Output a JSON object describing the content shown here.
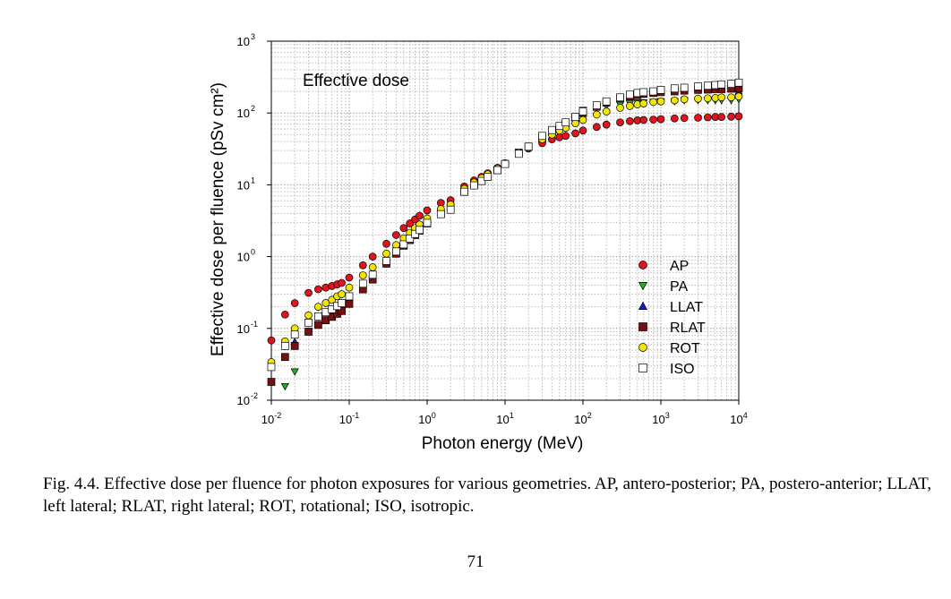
{
  "chart_data": {
    "type": "scatter",
    "title": "Effective dose",
    "xlabel": "Photon energy (MeV)",
    "ylabel": "Effective dose per fluence (pSv cm²)",
    "x_scale": "log",
    "y_scale": "log",
    "xlim": [
      0.01,
      10000
    ],
    "ylim": [
      0.01,
      1000
    ],
    "x_ticks": [
      {
        "base": "10",
        "exp": "-2"
      },
      {
        "base": "10",
        "exp": "-1"
      },
      {
        "base": "10",
        "exp": "0"
      },
      {
        "base": "10",
        "exp": "1"
      },
      {
        "base": "10",
        "exp": "2"
      },
      {
        "base": "10",
        "exp": "3"
      },
      {
        "base": "10",
        "exp": "4"
      }
    ],
    "y_ticks": [
      {
        "base": "10",
        "exp": "-2"
      },
      {
        "base": "10",
        "exp": "-1"
      },
      {
        "base": "10",
        "exp": "0"
      },
      {
        "base": "10",
        "exp": "1"
      },
      {
        "base": "10",
        "exp": "2"
      },
      {
        "base": "10",
        "exp": "3"
      }
    ],
    "grid": true,
    "legend_position": "bottom-right",
    "series": [
      {
        "name": "AP",
        "marker": "circle",
        "color": "#e0141e",
        "points": [
          [
            0.01,
            0.068
          ],
          [
            0.015,
            0.156
          ],
          [
            0.02,
            0.225
          ],
          [
            0.03,
            0.313
          ],
          [
            0.04,
            0.351
          ],
          [
            0.05,
            0.37
          ],
          [
            0.06,
            0.39
          ],
          [
            0.07,
            0.41
          ],
          [
            0.08,
            0.431
          ],
          [
            0.1,
            0.51
          ],
          [
            0.15,
            0.758
          ],
          [
            0.2,
            1.0
          ],
          [
            0.3,
            1.51
          ],
          [
            0.4,
            2.0
          ],
          [
            0.5,
            2.5
          ],
          [
            0.6,
            2.9
          ],
          [
            0.7,
            3.3
          ],
          [
            0.8,
            3.7
          ],
          [
            1.0,
            4.4
          ],
          [
            1.5,
            5.6
          ],
          [
            2,
            6.1
          ],
          [
            3,
            9.5
          ],
          [
            4,
            11.5
          ],
          [
            5,
            12.9
          ],
          [
            6,
            14.5
          ],
          [
            8,
            17.3
          ],
          [
            10,
            20
          ],
          [
            15,
            27
          ],
          [
            20,
            32
          ],
          [
            30,
            38
          ],
          [
            40,
            43
          ],
          [
            50,
            46
          ],
          [
            60,
            48
          ],
          [
            80,
            52
          ],
          [
            100,
            57
          ],
          [
            150,
            64
          ],
          [
            200,
            69
          ],
          [
            300,
            74
          ],
          [
            400,
            77
          ],
          [
            500,
            79
          ],
          [
            600,
            80
          ],
          [
            800,
            81
          ],
          [
            1000,
            82
          ],
          [
            1500,
            84
          ],
          [
            2000,
            85
          ],
          [
            3000,
            86
          ],
          [
            4000,
            87
          ],
          [
            5000,
            88
          ],
          [
            6000,
            88
          ],
          [
            8000,
            89
          ],
          [
            10000,
            90
          ]
        ]
      },
      {
        "name": "PA",
        "marker": "triangle-down",
        "color": "#2aa82a",
        "points": [
          [
            0.015,
            0.0156
          ],
          [
            0.02,
            0.025
          ],
          [
            100,
            110
          ],
          [
            150,
            120
          ],
          [
            200,
            125
          ],
          [
            300,
            130
          ],
          [
            400,
            135
          ],
          [
            500,
            140
          ],
          [
            600,
            140
          ],
          [
            800,
            142
          ],
          [
            1000,
            145
          ],
          [
            1500,
            145
          ],
          [
            2000,
            150
          ],
          [
            3000,
            150
          ],
          [
            4000,
            150
          ],
          [
            5000,
            150
          ],
          [
            6000,
            150
          ],
          [
            8000,
            150
          ],
          [
            10000,
            155
          ]
        ]
      },
      {
        "name": "LLAT",
        "marker": "triangle-up",
        "color": "#1a1acc",
        "points": [
          [
            0.02,
            0.065
          ],
          [
            10000,
            200
          ]
        ]
      },
      {
        "name": "RLAT",
        "marker": "square",
        "color": "#7a0f12",
        "points": [
          [
            0.01,
            0.018
          ],
          [
            0.015,
            0.04
          ],
          [
            0.02,
            0.057
          ],
          [
            0.03,
            0.09
          ],
          [
            0.04,
            0.112
          ],
          [
            0.05,
            0.13
          ],
          [
            0.06,
            0.145
          ],
          [
            0.07,
            0.16
          ],
          [
            0.08,
            0.175
          ],
          [
            0.1,
            0.22
          ],
          [
            0.15,
            0.35
          ],
          [
            0.2,
            0.48
          ],
          [
            0.3,
            0.8
          ],
          [
            0.4,
            1.1
          ],
          [
            0.5,
            1.42
          ],
          [
            0.6,
            1.7
          ],
          [
            0.7,
            2.0
          ],
          [
            0.8,
            2.3
          ],
          [
            1.0,
            2.9
          ],
          [
            1.5,
            4.0
          ],
          [
            2,
            4.9
          ],
          [
            3,
            8.0
          ],
          [
            4,
            10.0
          ],
          [
            5,
            11.5
          ],
          [
            6,
            13.0
          ],
          [
            8,
            16.0
          ],
          [
            10,
            19.5
          ],
          [
            15,
            28
          ],
          [
            20,
            34
          ],
          [
            30,
            45
          ],
          [
            40,
            55
          ],
          [
            50,
            64
          ],
          [
            60,
            71
          ],
          [
            80,
            85
          ],
          [
            100,
            100
          ],
          [
            150,
            122
          ],
          [
            200,
            140
          ],
          [
            300,
            160
          ],
          [
            400,
            170
          ],
          [
            500,
            178
          ],
          [
            600,
            185
          ],
          [
            800,
            190
          ],
          [
            1000,
            195
          ],
          [
            1500,
            200
          ],
          [
            2000,
            205
          ],
          [
            3000,
            210
          ],
          [
            4000,
            212
          ],
          [
            5000,
            215
          ],
          [
            6000,
            215
          ],
          [
            8000,
            218
          ],
          [
            10000,
            220
          ]
        ]
      },
      {
        "name": "ROT",
        "marker": "circle",
        "color": "#f2e600",
        "points": [
          [
            0.01,
            0.034
          ],
          [
            0.015,
            0.066
          ],
          [
            0.02,
            0.1
          ],
          [
            0.03,
            0.152
          ],
          [
            0.04,
            0.2
          ],
          [
            0.05,
            0.226
          ],
          [
            0.06,
            0.25
          ],
          [
            0.07,
            0.28
          ],
          [
            0.08,
            0.3
          ],
          [
            0.1,
            0.37
          ],
          [
            0.15,
            0.55
          ],
          [
            0.2,
            0.71
          ],
          [
            0.3,
            1.1
          ],
          [
            0.4,
            1.45
          ],
          [
            0.5,
            1.8
          ],
          [
            0.6,
            2.15
          ],
          [
            0.7,
            2.5
          ],
          [
            0.8,
            2.8
          ],
          [
            1.0,
            3.4
          ],
          [
            1.5,
            4.6
          ],
          [
            2,
            5.3
          ],
          [
            3,
            8.8
          ],
          [
            4,
            10.8
          ],
          [
            5,
            12.4
          ],
          [
            6,
            14.0
          ],
          [
            8,
            16.8
          ],
          [
            10,
            20
          ],
          [
            15,
            28
          ],
          [
            20,
            33
          ],
          [
            30,
            43
          ],
          [
            40,
            50
          ],
          [
            50,
            57
          ],
          [
            60,
            62
          ],
          [
            80,
            72
          ],
          [
            100,
            80
          ],
          [
            150,
            95
          ],
          [
            200,
            105
          ],
          [
            300,
            118
          ],
          [
            400,
            125
          ],
          [
            500,
            132
          ],
          [
            600,
            136
          ],
          [
            800,
            142
          ],
          [
            1000,
            145
          ],
          [
            1500,
            150
          ],
          [
            2000,
            155
          ],
          [
            3000,
            158
          ],
          [
            4000,
            160
          ],
          [
            5000,
            162
          ],
          [
            6000,
            165
          ],
          [
            8000,
            165
          ],
          [
            10000,
            170
          ]
        ]
      },
      {
        "name": "ISO",
        "marker": "square-open",
        "color": "#ffffff",
        "points": [
          [
            0.01,
            0.029
          ],
          [
            0.015,
            0.057
          ],
          [
            0.02,
            0.082
          ],
          [
            0.03,
            0.12
          ],
          [
            0.04,
            0.147
          ],
          [
            0.05,
            0.168
          ],
          [
            0.06,
            0.185
          ],
          [
            0.07,
            0.205
          ],
          [
            0.08,
            0.225
          ],
          [
            0.1,
            0.28
          ],
          [
            0.15,
            0.42
          ],
          [
            0.2,
            0.56
          ],
          [
            0.3,
            0.87
          ],
          [
            0.4,
            1.18
          ],
          [
            0.5,
            1.48
          ],
          [
            0.6,
            1.78
          ],
          [
            0.7,
            2.07
          ],
          [
            0.8,
            2.35
          ],
          [
            1.0,
            2.95
          ],
          [
            1.5,
            3.9
          ],
          [
            2,
            4.5
          ],
          [
            3,
            8.0
          ],
          [
            4,
            9.8
          ],
          [
            5,
            11.3
          ],
          [
            6,
            12.9
          ],
          [
            8,
            16.0
          ],
          [
            10,
            19.5
          ],
          [
            15,
            27
          ],
          [
            20,
            34
          ],
          [
            30,
            48
          ],
          [
            40,
            58
          ],
          [
            50,
            66
          ],
          [
            60,
            74
          ],
          [
            80,
            88
          ],
          [
            100,
            105
          ],
          [
            150,
            128
          ],
          [
            200,
            145
          ],
          [
            300,
            165
          ],
          [
            400,
            180
          ],
          [
            500,
            190
          ],
          [
            600,
            195
          ],
          [
            800,
            200
          ],
          [
            1000,
            210
          ],
          [
            1500,
            220
          ],
          [
            2000,
            225
          ],
          [
            3000,
            235
          ],
          [
            4000,
            240
          ],
          [
            5000,
            245
          ],
          [
            6000,
            250
          ],
          [
            8000,
            255
          ],
          [
            10000,
            265
          ]
        ]
      }
    ]
  },
  "caption": "Fig. 4.4.  Effective dose per fluence for photon exposures for various geometries. AP, antero-posterior; PA, postero-anterior; LLAT, left lateral; RLAT, right lateral; ROT, rotational; ISO, isotropic.",
  "page_number": "71"
}
